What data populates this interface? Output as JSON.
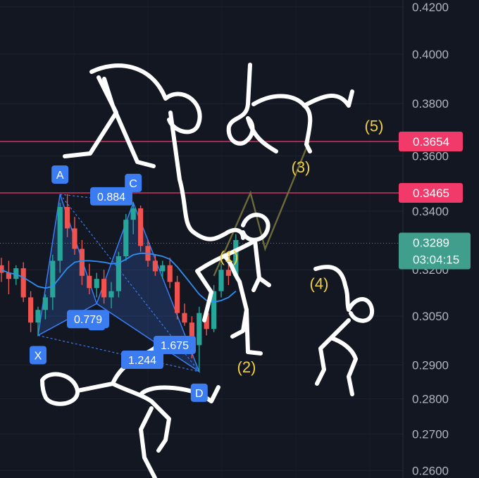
{
  "chart_data": {
    "type": "candlestick",
    "y_axis": {
      "ticks": [
        "0.4200",
        "0.4000",
        "0.3800",
        "0.3600",
        "0.3400",
        "0.3200",
        "0.3050",
        "0.2900",
        "0.2800",
        "0.2700",
        "0.2600"
      ],
      "tick_values": [
        0.42,
        0.4,
        0.38,
        0.36,
        0.34,
        0.32,
        0.305,
        0.29,
        0.28,
        0.27,
        0.26
      ],
      "range": [
        0.258,
        0.423
      ],
      "scale": "log"
    },
    "grid": true,
    "candles": [
      {
        "o": 0.3215,
        "h": 0.324,
        "l": 0.316,
        "c": 0.319
      },
      {
        "o": 0.319,
        "h": 0.323,
        "l": 0.312,
        "c": 0.317
      },
      {
        "o": 0.317,
        "h": 0.3215,
        "l": 0.315,
        "c": 0.3205
      },
      {
        "o": 0.3205,
        "h": 0.3225,
        "l": 0.3095,
        "c": 0.311
      },
      {
        "o": 0.311,
        "h": 0.313,
        "l": 0.3,
        "c": 0.303
      },
      {
        "o": 0.303,
        "h": 0.308,
        "l": 0.299,
        "c": 0.307
      },
      {
        "o": 0.307,
        "h": 0.312,
        "l": 0.304,
        "c": 0.311
      },
      {
        "o": 0.311,
        "h": 0.325,
        "l": 0.307,
        "c": 0.323
      },
      {
        "o": 0.323,
        "h": 0.343,
        "l": 0.319,
        "c": 0.3415
      },
      {
        "o": 0.3415,
        "h": 0.346,
        "l": 0.331,
        "c": 0.334
      },
      {
        "o": 0.334,
        "h": 0.338,
        "l": 0.325,
        "c": 0.327
      },
      {
        "o": 0.327,
        "h": 0.33,
        "l": 0.315,
        "c": 0.318
      },
      {
        "o": 0.318,
        "h": 0.322,
        "l": 0.312,
        "c": 0.314
      },
      {
        "o": 0.314,
        "h": 0.319,
        "l": 0.311,
        "c": 0.317
      },
      {
        "o": 0.317,
        "h": 0.32,
        "l": 0.309,
        "c": 0.311
      },
      {
        "o": 0.311,
        "h": 0.316,
        "l": 0.3075,
        "c": 0.313
      },
      {
        "o": 0.313,
        "h": 0.326,
        "l": 0.311,
        "c": 0.3245
      },
      {
        "o": 0.3245,
        "h": 0.339,
        "l": 0.323,
        "c": 0.337
      },
      {
        "o": 0.337,
        "h": 0.343,
        "l": 0.332,
        "c": 0.341
      },
      {
        "o": 0.341,
        "h": 0.342,
        "l": 0.326,
        "c": 0.328
      },
      {
        "o": 0.328,
        "h": 0.33,
        "l": 0.321,
        "c": 0.323
      },
      {
        "o": 0.323,
        "h": 0.325,
        "l": 0.318,
        "c": 0.3195
      },
      {
        "o": 0.3195,
        "h": 0.323,
        "l": 0.317,
        "c": 0.3215
      },
      {
        "o": 0.3215,
        "h": 0.324,
        "l": 0.314,
        "c": 0.316
      },
      {
        "o": 0.316,
        "h": 0.318,
        "l": 0.304,
        "c": 0.306
      },
      {
        "o": 0.306,
        "h": 0.309,
        "l": 0.302,
        "c": 0.303
      },
      {
        "o": 0.303,
        "h": 0.305,
        "l": 0.292,
        "c": 0.296
      },
      {
        "o": 0.296,
        "h": 0.308,
        "l": 0.288,
        "c": 0.306
      },
      {
        "o": 0.306,
        "h": 0.307,
        "l": 0.299,
        "c": 0.301
      },
      {
        "o": 0.301,
        "h": 0.315,
        "l": 0.3,
        "c": 0.313
      },
      {
        "o": 0.313,
        "h": 0.322,
        "l": 0.311,
        "c": 0.32
      },
      {
        "o": 0.32,
        "h": 0.323,
        "l": 0.315,
        "c": 0.318
      },
      {
        "o": 0.318,
        "h": 0.332,
        "l": 0.317,
        "c": 0.33
      }
    ],
    "moving_average": [
      0.32,
      0.319,
      0.3185,
      0.3175,
      0.316,
      0.3145,
      0.314,
      0.3145,
      0.3175,
      0.3205,
      0.3225,
      0.323,
      0.323,
      0.3228,
      0.3225,
      0.322,
      0.3222,
      0.3235,
      0.325,
      0.3255,
      0.3255,
      0.325,
      0.3245,
      0.3235,
      0.321,
      0.318,
      0.315,
      0.312,
      0.31,
      0.3095,
      0.31,
      0.311,
      0.313
    ],
    "pattern": {
      "points": [
        {
          "label": "X",
          "i": 5,
          "price": 0.299
        },
        {
          "label": "A",
          "i": 8,
          "price": 0.346
        },
        {
          "label": "B",
          "i": 13,
          "price": 0.309
        },
        {
          "label": "C",
          "i": 18,
          "price": 0.343
        },
        {
          "label": "D",
          "i": 27,
          "price": 0.288
        }
      ],
      "ratios": [
        {
          "label": "0.884",
          "price": 0.344
        },
        {
          "label": "0.779",
          "price": 0.303
        },
        {
          "label": "1.675",
          "price": 0.295
        },
        {
          "label": "1.244",
          "price": 0.2905
        }
      ]
    },
    "elliott_waves": [
      {
        "label": "(1)",
        "price": 0.3245
      },
      {
        "label": "(2)",
        "price": 0.2895
      },
      {
        "label": "(3)",
        "price": 0.356
      },
      {
        "label": "(4)",
        "price": 0.3155
      },
      {
        "label": "(5)",
        "price": 0.3715
      }
    ],
    "projection": [
      {
        "i": 29,
        "price": 0.318
      },
      {
        "i": 31,
        "price": 0.329
      },
      {
        "i": 34,
        "price": 0.3465
      },
      {
        "i": 36,
        "price": 0.327
      },
      {
        "i": 42,
        "price": 0.3654
      }
    ],
    "horizontal_lines": [
      {
        "label": "0.3654",
        "price": 0.3654,
        "color": "#f23a6a"
      },
      {
        "label": "0.3465",
        "price": 0.3465,
        "color": "#f23a6a"
      }
    ],
    "current_price": {
      "label": "0.3289",
      "price": 0.3289,
      "countdown": "03:04:15",
      "color": "#3f9f8c"
    },
    "colors": {
      "up": "#26a69a",
      "down": "#ef5350",
      "pattern": "#3b7cf0",
      "wave": "#f0d040",
      "background": "#131722"
    }
  }
}
